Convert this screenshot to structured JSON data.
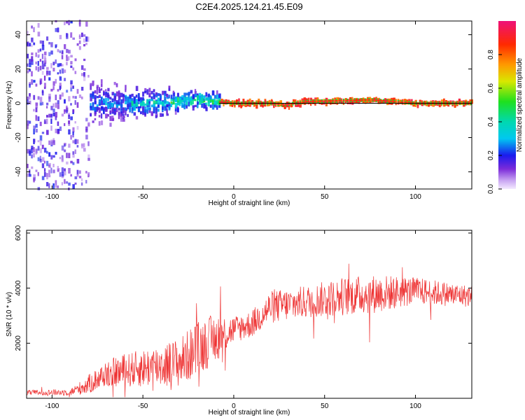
{
  "title": "C2E4.2025.124.21.45.E09",
  "colors": {
    "snr_line": "#ee3333",
    "center_line": "#000000"
  },
  "chart_data": [
    {
      "type": "heatmap",
      "xlabel": "Height of straight line (km)",
      "ylabel": "Frequency (Hz)",
      "xlim": [
        -114,
        131
      ],
      "ylim": [
        -50,
        48
      ],
      "xticks": [
        -100,
        -50,
        0,
        50,
        100
      ],
      "yticks": [
        -40,
        -20,
        0,
        20,
        40
      ],
      "colorbar": {
        "label": "Normalized spectral amplitude",
        "range": [
          0,
          1
        ],
        "ticks": [
          0.0,
          0.2,
          0.4,
          0.6,
          0.8
        ]
      },
      "ridge": [
        {
          "x": -90,
          "y": 0
        },
        {
          "x": -70,
          "y": 0
        },
        {
          "x": -50,
          "y": 0
        },
        {
          "x": -40,
          "y": 0
        },
        {
          "x": -30,
          "y": 1
        },
        {
          "x": -20,
          "y": 2
        },
        {
          "x": -10,
          "y": 1
        },
        {
          "x": 0,
          "y": 0
        },
        {
          "x": 20,
          "y": 0
        },
        {
          "x": 27,
          "y": -1
        },
        {
          "x": 40,
          "y": 1
        },
        {
          "x": 75,
          "y": 2
        },
        {
          "x": 100,
          "y": 0
        },
        {
          "x": 131,
          "y": 0
        }
      ]
    },
    {
      "type": "line",
      "xlabel": "Height of straight line (km)",
      "ylabel": "SNR (10 * v/v)",
      "xlim": [
        -114,
        131
      ],
      "ylim": [
        0,
        6100
      ],
      "xticks": [
        -100,
        -50,
        0,
        50,
        100
      ],
      "yticks": [
        2000,
        4000,
        6000
      ],
      "envelope": [
        {
          "x": -114,
          "mean": 200,
          "amp": 100
        },
        {
          "x": -90,
          "mean": 220,
          "amp": 120
        },
        {
          "x": -80,
          "mean": 500,
          "amp": 350
        },
        {
          "x": -70,
          "mean": 900,
          "amp": 500
        },
        {
          "x": -50,
          "mean": 1100,
          "amp": 700
        },
        {
          "x": -30,
          "mean": 1300,
          "amp": 900
        },
        {
          "x": -20,
          "mean": 1800,
          "amp": 1000
        },
        {
          "x": -10,
          "mean": 2200,
          "amp": 900
        },
        {
          "x": 0,
          "mean": 2500,
          "amp": 500
        },
        {
          "x": 10,
          "mean": 2700,
          "amp": 500
        },
        {
          "x": 20,
          "mean": 3300,
          "amp": 600
        },
        {
          "x": 40,
          "mean": 3500,
          "amp": 600
        },
        {
          "x": 60,
          "mean": 3700,
          "amp": 700
        },
        {
          "x": 80,
          "mean": 3800,
          "amp": 700
        },
        {
          "x": 100,
          "mean": 3900,
          "amp": 500
        },
        {
          "x": 131,
          "mean": 3700,
          "amp": 400
        }
      ]
    }
  ]
}
